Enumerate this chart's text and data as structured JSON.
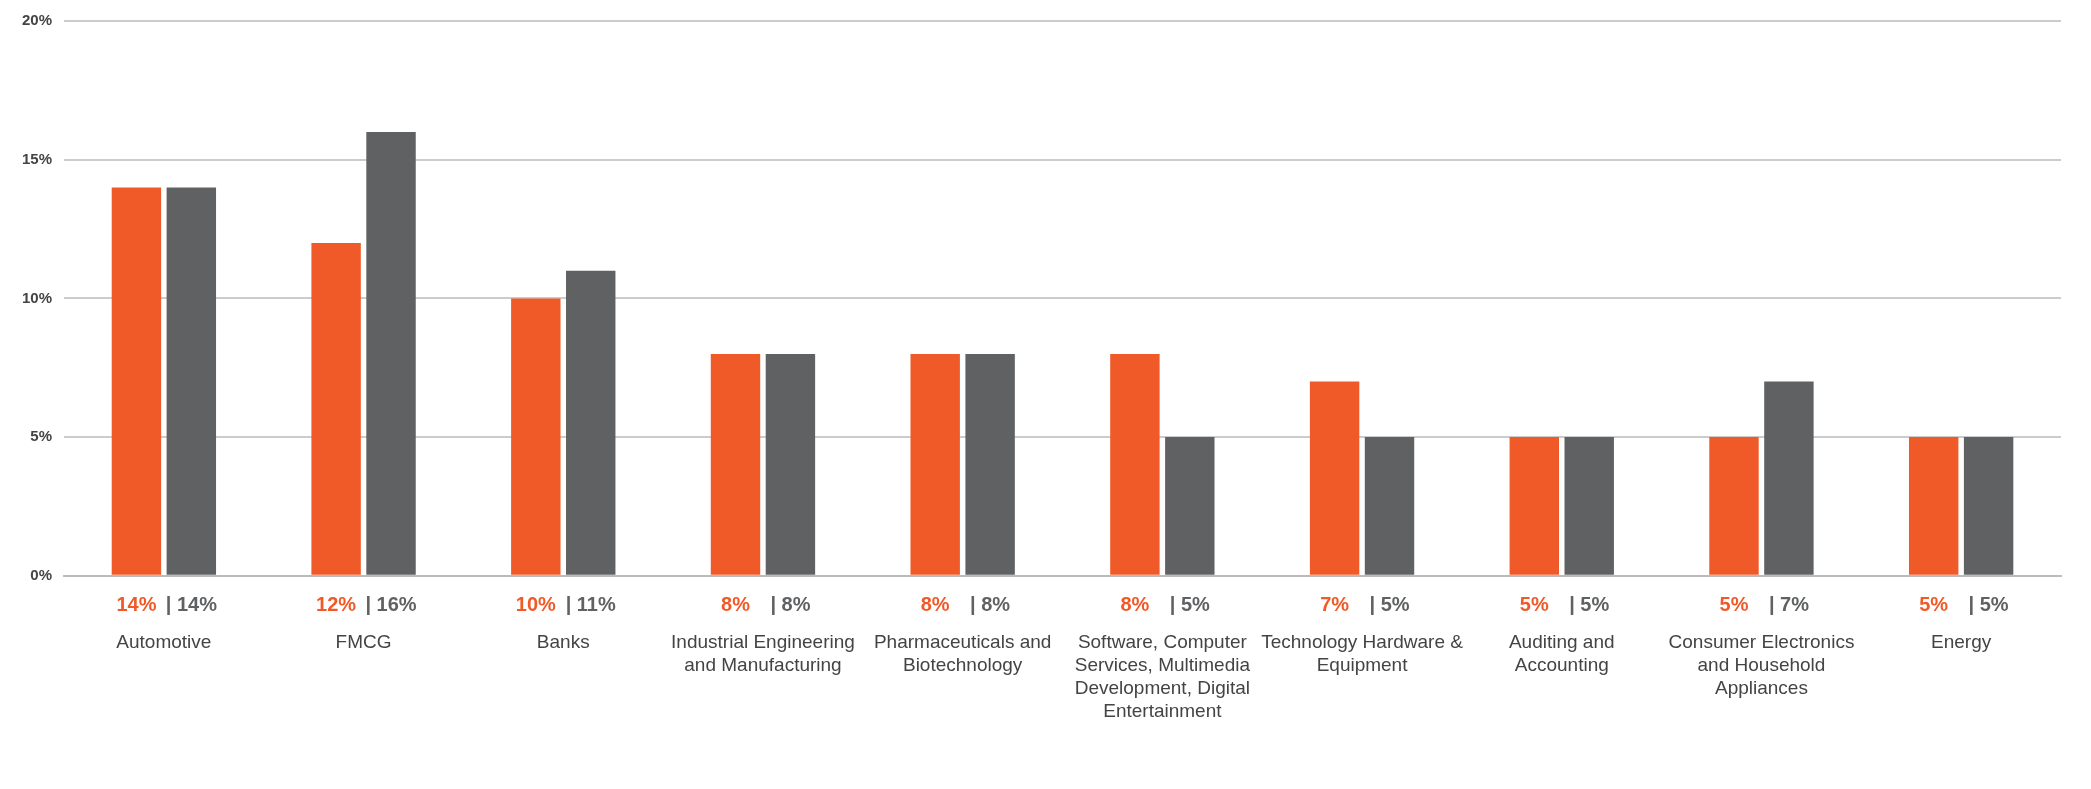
{
  "chart_data": {
    "type": "bar",
    "categories": [
      "Automotive",
      "FMCG",
      "Banks",
      "Industrial Engineering and Manufacturing",
      "Pharmaceuticals and Biotechnology",
      "Software, Computer Services, Multimedia Development, Digital Entertainment",
      "Technology Hardware & Equipment",
      "Auditing and Accounting",
      "Consumer Electronics and Household Appliances",
      "Energy"
    ],
    "series": [
      {
        "color": "#f05a28",
        "values": [
          14,
          12,
          10,
          8,
          8,
          8,
          7,
          5,
          5,
          5
        ],
        "value_labels": [
          "14%",
          "12%",
          "10%",
          "8%",
          "8%",
          "8%",
          "7%",
          "5%",
          "5%",
          "5%"
        ]
      },
      {
        "color": "#5f6163",
        "values": [
          14,
          16,
          11,
          8,
          8,
          5,
          5,
          5,
          7,
          5
        ],
        "value_labels": [
          "| 14%",
          "| 16%",
          "| 11%",
          "| 8%",
          "| 8%",
          "| 5%",
          "| 5%",
          "| 5%",
          "| 7%",
          "| 5%"
        ]
      }
    ],
    "ylim": [
      0,
      20
    ],
    "yticks": [
      {
        "value": 0,
        "label": "0%"
      },
      {
        "value": 5,
        "label": "5%"
      },
      {
        "value": 10,
        "label": "10%"
      },
      {
        "value": 15,
        "label": "15%"
      },
      {
        "value": 20,
        "label": "20%"
      }
    ],
    "grid": "y",
    "legend": false
  }
}
